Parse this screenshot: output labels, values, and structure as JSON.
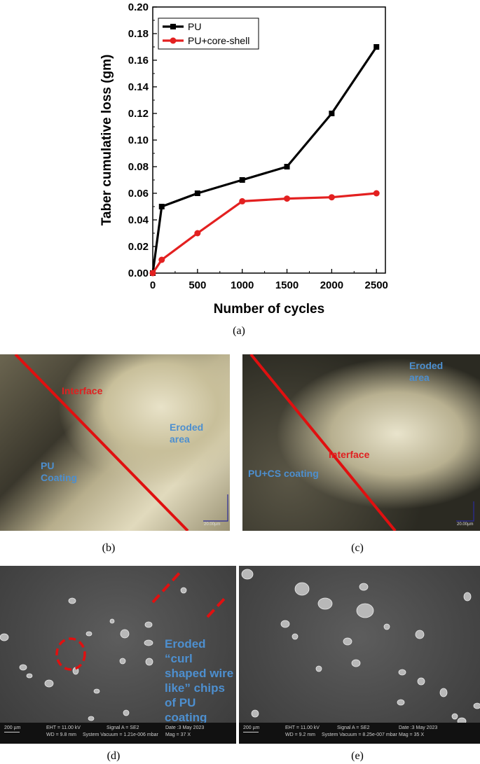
{
  "figure": {
    "chart_data": {
      "type": "line",
      "x": [
        0,
        100,
        500,
        1000,
        1500,
        2000,
        2500
      ],
      "series": [
        {
          "name": "PU",
          "color": "#000000",
          "marker": "square",
          "values": [
            0.0,
            0.05,
            0.06,
            0.07,
            0.08,
            0.12,
            0.17
          ]
        },
        {
          "name": "PU+core-shell",
          "color": "#e32020",
          "marker": "circle",
          "values": [
            0.0,
            0.01,
            0.03,
            0.054,
            0.056,
            0.057,
            0.06
          ]
        }
      ],
      "xlabel": "Number of cycles",
      "ylabel": "Taber cumulative loss (gm)",
      "xlim": [
        0,
        2600
      ],
      "ylim": [
        0,
        0.2
      ],
      "xticks": [
        "0",
        "500",
        "1000",
        "1500",
        "2000",
        "2500"
      ],
      "yticks": [
        "0.00",
        "0.02",
        "0.04",
        "0.06",
        "0.08",
        "0.10",
        "0.12",
        "0.14",
        "0.16",
        "0.18",
        "0.20"
      ],
      "legend_position": "top-left",
      "grid": false
    },
    "captions": {
      "a": "(a)",
      "b": "(b)",
      "c": "(c)",
      "d": "(d)",
      "e": "(e)"
    },
    "panel_b": {
      "interface": "Interface",
      "eroded": "Eroded area",
      "coating": "PU Coating",
      "scale": "20.00µm"
    },
    "panel_c": {
      "interface": "Interface",
      "eroded": "Eroded area",
      "coating": "PU+CS coating",
      "scale": "20.00µm"
    },
    "panel_d": {
      "annotation": "Eroded “curl shaped wire like” chips of PU coating",
      "scale": "200 µm",
      "eht": "EHT = 11.00 kV",
      "wd": "WD = 9.8 mm",
      "signal": "Signal A = SE2",
      "vacuum": "System Vacuum = 1.21e-006 mbar",
      "date": "Date :3 May 2023",
      "mag": "Mag =   37 X"
    },
    "panel_e": {
      "scale": "200 µm",
      "eht": "EHT = 11.00 kV",
      "wd": "WD = 9.2 mm",
      "signal": "Signal A = SE2",
      "vacuum": "System Vacuum = 8.25e-007 mbar",
      "date": "Date :3 May 2023",
      "mag": "Mag =   35 X"
    }
  }
}
